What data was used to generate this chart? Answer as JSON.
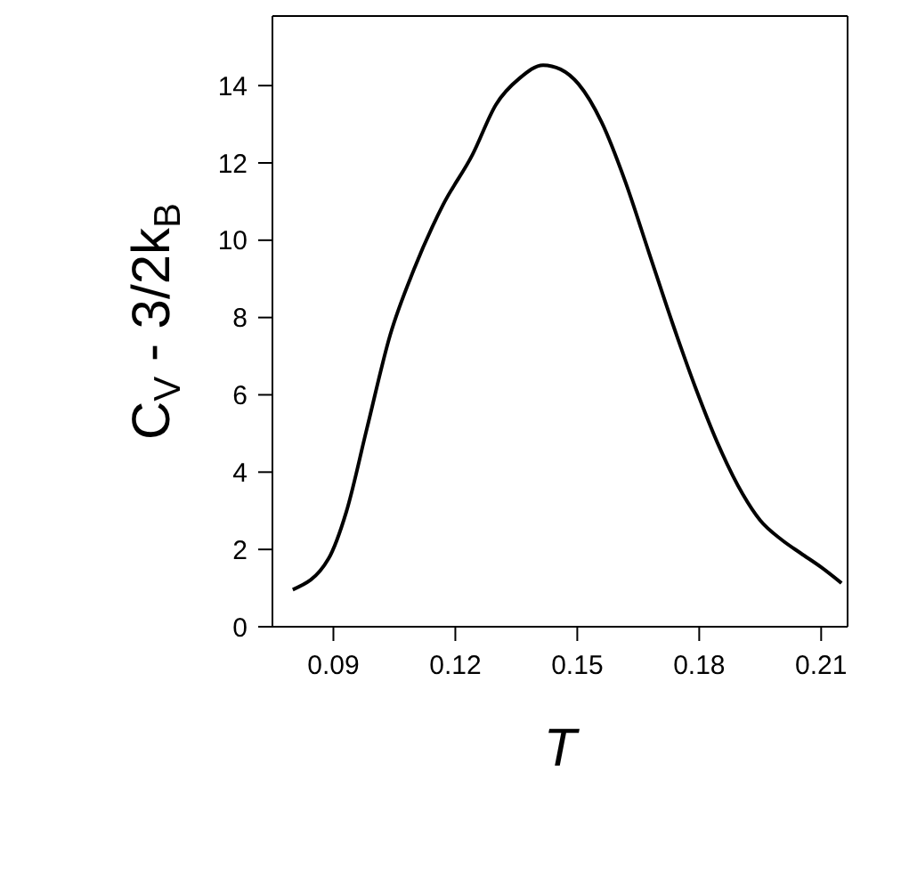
{
  "chart_data": {
    "type": "line",
    "xlabel": "T",
    "ylabel": "C$_{V}$ - 3/2k$_{B}$",
    "x": [
      0.08,
      0.0888,
      0.0932,
      0.0982,
      0.104,
      0.1098,
      0.117,
      0.1242,
      0.13,
      0.1358,
      0.1416,
      0.1459,
      0.1503,
      0.156,
      0.1618,
      0.1676,
      0.1734,
      0.1791,
      0.1849,
      0.1907,
      0.195,
      0.2004,
      0.205,
      0.21,
      0.215
    ],
    "series": [
      {
        "color": "#000000",
        "values": [
          0.96,
          1.76,
          2.98,
          5.11,
          7.56,
          9.24,
          10.92,
          12.21,
          13.51,
          14.19,
          14.53,
          14.42,
          14.04,
          13.05,
          11.52,
          9.69,
          7.86,
          6.18,
          4.66,
          3.43,
          2.75,
          2.24,
          1.9,
          1.54,
          1.13
        ]
      }
    ],
    "xlim": [
      0.075,
      0.2165
    ],
    "xticks": [
      0.09,
      0.12,
      0.15,
      0.18,
      0.21
    ],
    "ylim": [
      0,
      15.8
    ],
    "yticks": [
      0,
      2,
      4,
      6,
      8,
      10,
      12,
      14
    ],
    "grid": false,
    "legend": false
  }
}
